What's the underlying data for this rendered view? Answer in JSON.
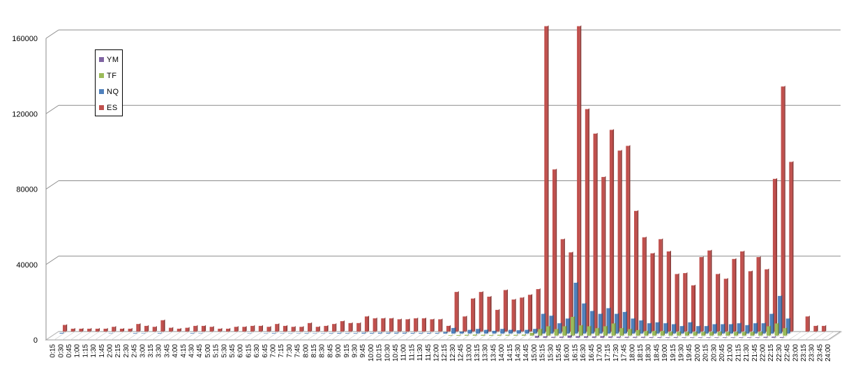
{
  "chart_data": {
    "type": "bar",
    "title": "",
    "xlabel": "",
    "ylabel": "",
    "ylim": [
      0,
      160000
    ],
    "yticks": [
      0,
      40000,
      80000,
      120000,
      160000
    ],
    "grid": true,
    "legend_position": "top-left",
    "categories": [
      "0:15",
      "0:30",
      "0:45",
      "1:00",
      "1:15",
      "1:30",
      "1:45",
      "2:00",
      "2:15",
      "2:30",
      "2:45",
      "3:00",
      "3:15",
      "3:30",
      "3:45",
      "4:00",
      "4:15",
      "4:30",
      "4:45",
      "5:00",
      "5:15",
      "5:30",
      "5:45",
      "6:00",
      "6:15",
      "6:30",
      "6:45",
      "7:00",
      "7:15",
      "7:30",
      "7:45",
      "8:00",
      "8:15",
      "8:30",
      "8:45",
      "9:00",
      "9:15",
      "9:30",
      "9:45",
      "10:00",
      "10:15",
      "10:30",
      "10:45",
      "11:00",
      "11:15",
      "11:30",
      "11:45",
      "12:00",
      "12:15",
      "12:30",
      "12:45",
      "13:00",
      "13:15",
      "13:30",
      "13:45",
      "14:00",
      "14:15",
      "14:30",
      "14:45",
      "15:00",
      "15:15",
      "15:30",
      "15:45",
      "16:00",
      "16:15",
      "16:30",
      "16:45",
      "17:00",
      "17:15",
      "17:30",
      "17:45",
      "18:00",
      "18:15",
      "18:30",
      "18:45",
      "19:00",
      "19:15",
      "19:30",
      "19:45",
      "20:00",
      "20:15",
      "20:30",
      "20:45",
      "21:00",
      "21:15",
      "21:30",
      "21:45",
      "22:00",
      "22:15",
      "22:30",
      "22:45",
      "23:00",
      "23:15",
      "23:30",
      "23:45",
      "24:00"
    ],
    "series": [
      {
        "name": "YM",
        "color": "#7f64a2",
        "values": [
          0,
          0,
          0,
          0,
          0,
          0,
          0,
          0,
          0,
          0,
          0,
          0,
          0,
          0,
          0,
          0,
          0,
          0,
          0,
          0,
          0,
          0,
          0,
          0,
          0,
          0,
          0,
          0,
          0,
          0,
          0,
          0,
          0,
          0,
          0,
          0,
          0,
          0,
          0,
          0,
          0,
          0,
          0,
          0,
          0,
          0,
          0,
          0,
          0,
          0,
          0,
          0,
          0,
          0,
          0,
          0,
          0,
          0,
          0,
          1000,
          800,
          500,
          600,
          1200,
          900,
          800,
          700,
          900,
          700,
          600,
          500,
          500,
          500,
          400,
          400,
          300,
          400,
          300,
          300,
          300,
          300,
          300,
          300,
          300,
          300,
          300,
          300,
          500,
          600,
          400,
          0,
          0,
          0,
          0,
          0,
          0
        ]
      },
      {
        "name": "TF",
        "color": "#9bbb59",
        "values": [
          0,
          0,
          0,
          0,
          0,
          0,
          0,
          0,
          0,
          0,
          0,
          0,
          0,
          0,
          0,
          0,
          0,
          0,
          0,
          0,
          0,
          0,
          0,
          0,
          0,
          0,
          0,
          0,
          0,
          0,
          0,
          0,
          0,
          0,
          0,
          0,
          0,
          0,
          0,
          0,
          0,
          0,
          0,
          0,
          0,
          0,
          0,
          0,
          300,
          400,
          500,
          600,
          500,
          400,
          500,
          500,
          500,
          600,
          1500,
          3500,
          5000,
          3500,
          5000,
          10000,
          5500,
          5000,
          4000,
          5000,
          6500,
          4000,
          3500,
          3000,
          2500,
          2500,
          2500,
          2000,
          2000,
          2000,
          2000,
          2000,
          2000,
          2000,
          2000,
          2000,
          2000,
          2000,
          2000,
          5000,
          6500,
          4000,
          0,
          0,
          0,
          0,
          0,
          0
        ]
      },
      {
        "name": "NQ",
        "color": "#4f81bd",
        "values": [
          400,
          0,
          0,
          0,
          0,
          0,
          200,
          0,
          0,
          300,
          200,
          0,
          300,
          0,
          0,
          0,
          300,
          200,
          0,
          0,
          0,
          0,
          0,
          200,
          0,
          200,
          300,
          200,
          200,
          200,
          300,
          200,
          200,
          300,
          400,
          300,
          300,
          500,
          400,
          500,
          500,
          500,
          500,
          400,
          400,
          400,
          400,
          800,
          3000,
          1000,
          2000,
          2500,
          2000,
          1500,
          2500,
          2000,
          1800,
          2000,
          2500,
          10500,
          9500,
          5500,
          8000,
          27000,
          16000,
          12000,
          10500,
          13500,
          10500,
          11500,
          8000,
          7000,
          5500,
          6000,
          5500,
          5000,
          4000,
          6000,
          4000,
          4000,
          5000,
          5000,
          5000,
          5500,
          4500,
          5500,
          5500,
          10500,
          20000,
          8000,
          0,
          0,
          0,
          0,
          0,
          0
        ]
      },
      {
        "name": "ES",
        "color": "#c0504d",
        "values": [
          3500,
          1500,
          1500,
          1500,
          1500,
          1500,
          2500,
          1500,
          1500,
          4000,
          3000,
          2500,
          6000,
          2000,
          1500,
          2000,
          3000,
          3000,
          2500,
          1500,
          1500,
          2500,
          2500,
          3000,
          3000,
          2500,
          4000,
          3000,
          2500,
          2500,
          4500,
          2500,
          3000,
          4000,
          5500,
          4500,
          4500,
          8000,
          7000,
          7000,
          7000,
          6500,
          6500,
          7000,
          7000,
          6500,
          6500,
          3000,
          21000,
          8000,
          17500,
          21000,
          18500,
          11500,
          22000,
          17000,
          18000,
          19500,
          22500,
          162000,
          86000,
          49000,
          42000,
          162000,
          118000,
          105000,
          82000,
          107000,
          96000,
          98500,
          64000,
          50000,
          41500,
          49000,
          42500,
          30500,
          31000,
          24500,
          39500,
          43000,
          30500,
          28000,
          38500,
          42500,
          32000,
          39500,
          33000,
          81000,
          130000,
          90000,
          0,
          8000,
          3000,
          3000,
          0,
          0
        ]
      }
    ]
  }
}
